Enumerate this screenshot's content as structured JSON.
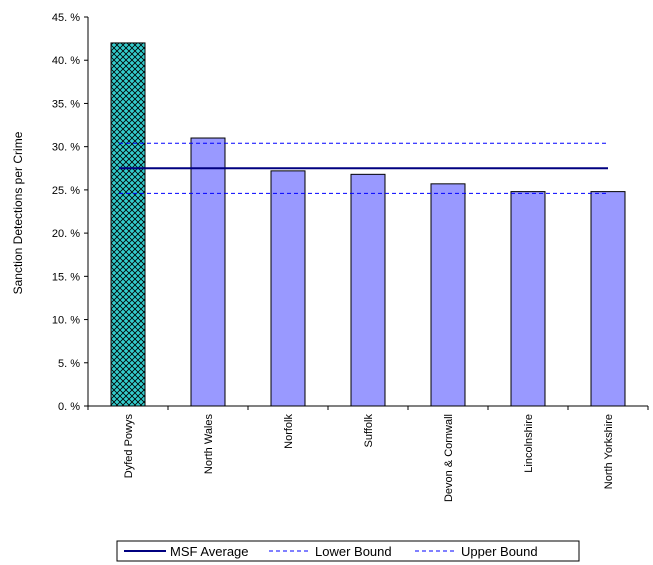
{
  "chart_data": {
    "type": "bar",
    "title": "",
    "ylabel": "Sanction Detections per Crime",
    "xlabel": "",
    "ylim": [
      0,
      45
    ],
    "y_ticks": [
      0,
      5,
      10,
      15,
      20,
      25,
      30,
      35,
      40,
      45
    ],
    "y_tick_labels": [
      "0. %",
      "5. %",
      "10. %",
      "15. %",
      "20. %",
      "25. %",
      "30. %",
      "35. %",
      "40. %",
      "45. %"
    ],
    "categories": [
      "Dyfed Powys",
      "North Wales",
      "Norfolk",
      "Suffolk",
      "Devon & Cornwall",
      "Lincolnshire",
      "North Yorkshire"
    ],
    "values": [
      42.0,
      31.0,
      27.2,
      26.8,
      25.7,
      24.8,
      24.8
    ],
    "highlight_index": 0,
    "bar_color": "#9999ff",
    "highlight_color": "#33cccc",
    "reference_lines": [
      {
        "name": "MSF Average",
        "value": 27.5,
        "style": "solid",
        "color": "#000080"
      },
      {
        "name": "Lower Bound",
        "value": 24.6,
        "style": "dashed",
        "color": "#0000ff"
      },
      {
        "name": "Upper Bound",
        "value": 30.4,
        "style": "dashed",
        "color": "#0000ff"
      }
    ],
    "legend_position": "bottom",
    "grid": false
  }
}
